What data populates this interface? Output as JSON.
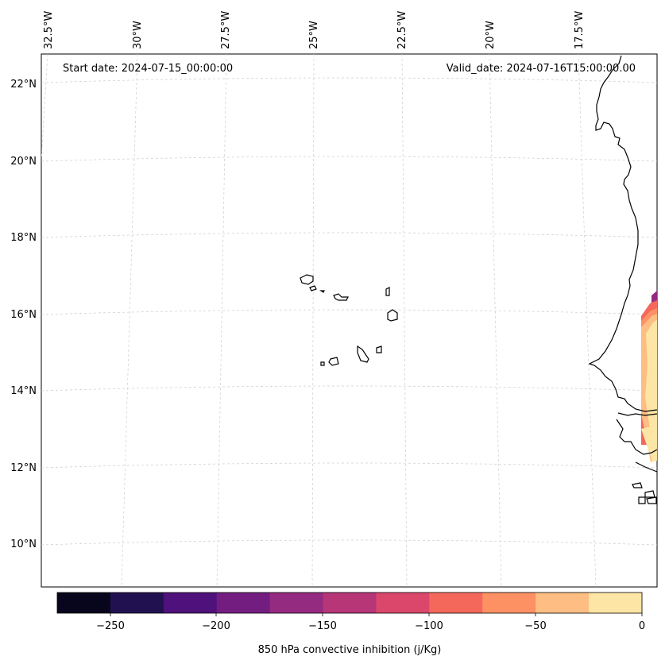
{
  "map": {
    "start_label": "Start date: 2024-07-15_00:00:00",
    "valid_label": "Valid_date: 2024-07-16T15:00:00.00",
    "lon_labels": [
      "32.5°W",
      "30°W",
      "27.5°W",
      "25°W",
      "22.5°W",
      "20°W",
      "17.5°W"
    ],
    "lat_labels": [
      "22°N",
      "20°N",
      "18°N",
      "16°N",
      "14°N",
      "12°N",
      "10°N"
    ]
  },
  "colorbar": {
    "label": "850 hPa convective inhibition (j/Kg)",
    "ticks": [
      "−250",
      "−200",
      "−150",
      "−100",
      "−50",
      "0"
    ],
    "colors": [
      "#07061c",
      "#221150",
      "#4f117b",
      "#731d81",
      "#942b80",
      "#b63678",
      "#db476b",
      "#f4685c",
      "#fd9163",
      "#febd82",
      "#fde5a5"
    ]
  }
}
